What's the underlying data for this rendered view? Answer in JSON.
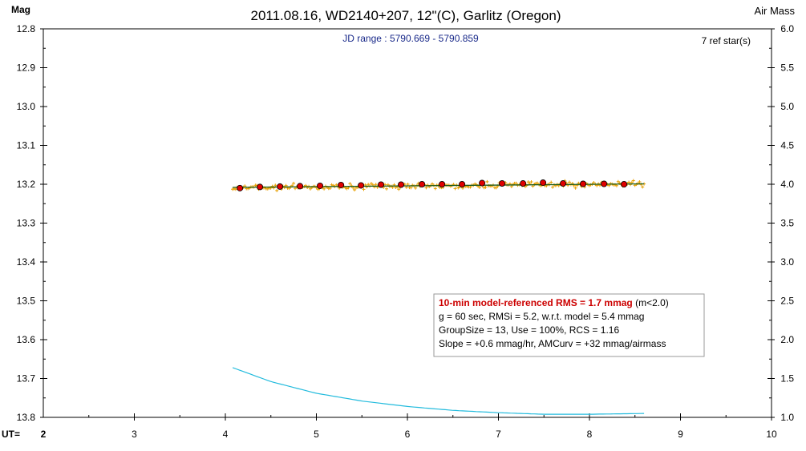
{
  "chart_data": {
    "type": "scatter",
    "title": "2011.08.16, WD2140+207, 12\"(C), Garlitz (Oregon)",
    "subtitle": "JD range : 5790.669 - 5790.859",
    "ref_stars": "7 ref star(s)",
    "ylabel": "Mag",
    "y2label": "Air Mass",
    "xlabel": "UT=",
    "xlim": [
      2,
      10
    ],
    "ylim": [
      12.8,
      13.8
    ],
    "y2lim": [
      1.0,
      6.0
    ],
    "y_inverted": true,
    "x_ticks": [
      "2",
      "3",
      "4",
      "5",
      "6",
      "7",
      "8",
      "9",
      "10"
    ],
    "y_ticks": [
      "12.8",
      "12.9",
      "13.0",
      "13.1",
      "13.2",
      "13.3",
      "13.4",
      "13.5",
      "13.6",
      "13.7",
      "13.8"
    ],
    "y2_ticks": [
      "6.0",
      "5.5",
      "5.0",
      "4.5",
      "4.0",
      "3.5",
      "3.0",
      "2.5",
      "2.0",
      "1.5",
      "1.0"
    ],
    "grid": false,
    "info_box": {
      "line1_bold": "10-min model-referenced RMS = 1.7 mmag",
      "line1_rest": " (m<2.0)",
      "line2": "g = 60 sec, RMSi = 5.2, w.r.t. model = 5.4 mmag",
      "line3": "GroupSize = 13, Use = 100%, RCS = 1.16",
      "line4": "Slope = +0.6 mmag/hr, AMCurv = +32 mmag/airmass"
    },
    "series": [
      {
        "kind": "individual",
        "color": "#e8a000",
        "x_range": [
          4.08,
          8.6
        ],
        "count": 271,
        "mean_start": 13.209,
        "mean_end": 13.199,
        "scatter": 0.0052
      },
      {
        "kind": "group_mean",
        "color": "#e00000",
        "x": [
          4.16,
          4.38,
          4.6,
          4.82,
          5.04,
          5.27,
          5.49,
          5.71,
          5.93,
          6.16,
          6.38,
          6.6,
          6.82,
          7.04,
          7.27,
          7.49,
          7.71,
          7.93,
          8.16,
          8.38
        ],
        "values": [
          13.21,
          13.207,
          13.206,
          13.205,
          13.204,
          13.202,
          13.203,
          13.201,
          13.201,
          13.2,
          13.2,
          13.2,
          13.197,
          13.198,
          13.198,
          13.196,
          13.198,
          13.199,
          13.199,
          13.2
        ]
      },
      {
        "kind": "model",
        "color": "#000000",
        "x": [
          4.08,
          8.6
        ],
        "values": [
          13.208,
          13.199
        ]
      },
      {
        "kind": "airmass",
        "axis": "y2",
        "color": "#22bbdd",
        "x": [
          4.08,
          4.5,
          5.0,
          5.5,
          6.0,
          6.5,
          7.0,
          7.5,
          8.0,
          8.6
        ],
        "values": [
          1.64,
          1.46,
          1.31,
          1.21,
          1.14,
          1.09,
          1.06,
          1.04,
          1.04,
          1.05
        ]
      }
    ]
  }
}
